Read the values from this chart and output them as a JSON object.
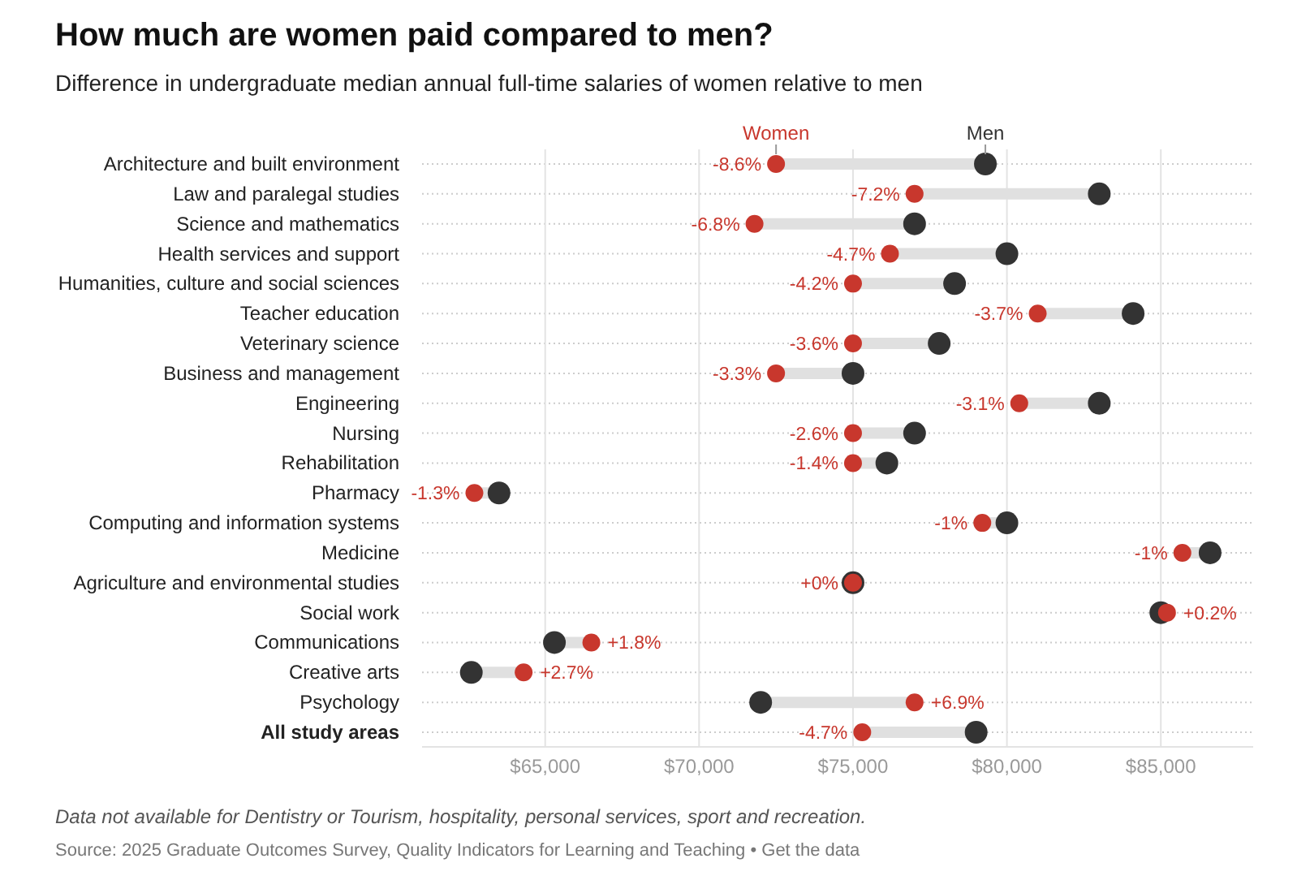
{
  "chart_data": {
    "type": "scatter",
    "orientation": "horizontal",
    "title": "How much are women paid compared to men?",
    "subtitle": "Difference in undergraduate median annual full-time salaries of women relative to men",
    "categories": [
      "Architecture and built environment",
      "Law and paralegal studies",
      "Science and mathematics",
      "Health services and support",
      "Humanities, culture and social sciences",
      "Teacher education",
      "Veterinary science",
      "Business and management",
      "Engineering",
      "Nursing",
      "Rehabilitation",
      "Pharmacy",
      "Computing and information systems",
      "Medicine",
      "Agriculture and environmental studies",
      "Social work",
      "Communications",
      "Creative arts",
      "Psychology",
      "All study areas"
    ],
    "series": [
      {
        "name": "Women",
        "color": "#c8372d",
        "values": [
          72500,
          77000,
          71800,
          76200,
          75000,
          81000,
          75000,
          72500,
          80400,
          75000,
          75000,
          62700,
          79200,
          85700,
          75000,
          85200,
          66500,
          64300,
          77000,
          75300
        ]
      },
      {
        "name": "Men",
        "color": "#333333",
        "values": [
          79300,
          83000,
          77000,
          80000,
          78300,
          84100,
          77800,
          75000,
          83000,
          77000,
          76100,
          63500,
          80000,
          86600,
          75000,
          85000,
          65300,
          62600,
          72000,
          79000
        ]
      }
    ],
    "xlim": [
      61000,
      88000
    ],
    "xticks": [
      {
        "value": 65000,
        "label": "$65,000"
      },
      {
        "value": 70000,
        "label": "$70,000"
      },
      {
        "value": 75000,
        "label": "$75,000"
      },
      {
        "value": 80000,
        "label": "$80,000"
      },
      {
        "value": 85000,
        "label": "$85,000"
      }
    ],
    "grid": true,
    "legend": "top",
    "marker": "circle",
    "annotations": [
      {
        "text": "-8.6%",
        "x": 72500,
        "y": "Architecture and built environment"
      },
      {
        "text": "-7.2%",
        "x": 77000,
        "y": "Law and paralegal studies"
      },
      {
        "text": "-6.8%",
        "x": 71800,
        "y": "Science and mathematics"
      },
      {
        "text": "-4.7%",
        "x": 76200,
        "y": "Health services and support"
      },
      {
        "text": "-4.2%",
        "x": 75000,
        "y": "Humanities, culture and social sciences"
      },
      {
        "text": "-3.7%",
        "x": 81000,
        "y": "Teacher education"
      },
      {
        "text": "-3.6%",
        "x": 75000,
        "y": "Veterinary science"
      },
      {
        "text": "-3.3%",
        "x": 72500,
        "y": "Business and management"
      },
      {
        "text": "-3.1%",
        "x": 80400,
        "y": "Engineering"
      },
      {
        "text": "-2.6%",
        "x": 75000,
        "y": "Nursing"
      },
      {
        "text": "-1.4%",
        "x": 75000,
        "y": "Rehabilitation"
      },
      {
        "text": "-1.3%",
        "x": 62700,
        "y": "Pharmacy"
      },
      {
        "text": "-1%",
        "x": 79200,
        "y": "Computing and information systems"
      },
      {
        "text": "-1%",
        "x": 85700,
        "y": "Medicine"
      },
      {
        "text": "+0%",
        "x": 75000,
        "y": "Agriculture and environmental studies"
      },
      {
        "text": "+0.2%",
        "x": 85200,
        "y": "Social work"
      },
      {
        "text": "+1.8%",
        "x": 66500,
        "y": "Communications"
      },
      {
        "text": "+2.7%",
        "x": 64300,
        "y": "Creative arts"
      },
      {
        "text": "+6.9%",
        "x": 77000,
        "y": "Psychology"
      },
      {
        "text": "-4.7%",
        "x": 75300,
        "y": "All study areas"
      },
      "Data not available for Dentistry or Tourism, hospitality, personal services, sport and recreation.",
      "Source: 2025 Graduate Outcomes Survey, Quality Indicators for Learning and Teaching • Get the data"
    ]
  }
}
